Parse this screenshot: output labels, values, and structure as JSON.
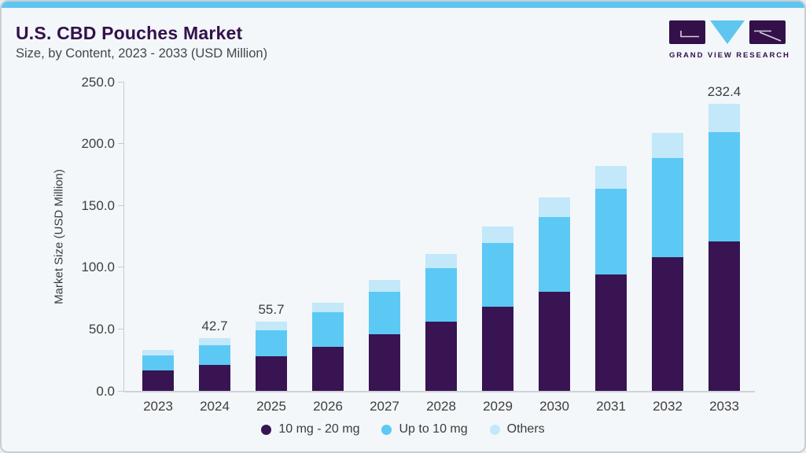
{
  "header": {
    "title": "U.S. CBD Pouches Market",
    "subtitle": "Size, by Content, 2023 - 2033 (USD Million)"
  },
  "logo": {
    "text": "GRAND VIEW RESEARCH"
  },
  "colors": {
    "accent_blue": "#5EC6F0",
    "brand_purple": "#34104A",
    "card_background": "#F3F7FA",
    "card_border": "#C8CED4",
    "axis_line": "#C6CBD1",
    "tick_text": "#3E3E3E",
    "bar_dark_purple": "#381452",
    "bar_mid_blue": "#5BC9F4",
    "bar_pale_blue": "#C2E8F9"
  },
  "chart_data": {
    "type": "bar",
    "stacked": true,
    "title": "U.S. CBD Pouches Market",
    "subtitle": "Size, by Content, 2023 - 2033 (USD Million)",
    "xlabel": "",
    "ylabel": "Market Size (USD Million)",
    "ylim": [
      0,
      250
    ],
    "y_ticks": [
      "0.0",
      "50.0",
      "100.0",
      "150.0",
      "200.0",
      "250.0"
    ],
    "grid": false,
    "legend_position": "bottom",
    "categories": [
      "2023",
      "2024",
      "2025",
      "2026",
      "2027",
      "2028",
      "2029",
      "2030",
      "2031",
      "2032",
      "2033"
    ],
    "series": [
      {
        "name": "10 mg - 20 mg",
        "color": "#381452",
        "values": [
          16.4,
          21.2,
          28.0,
          35.8,
          45.9,
          56.0,
          68.2,
          80.3,
          94.3,
          108.2,
          120.9
        ]
      },
      {
        "name": "Up to 10 mg",
        "color": "#5BC9F4",
        "values": [
          12.5,
          16.0,
          21.3,
          28.1,
          34.4,
          43.0,
          51.5,
          60.3,
          69.2,
          80.1,
          88.6
        ]
      },
      {
        "name": "Others",
        "color": "#C2E8F9",
        "values": [
          3.9,
          5.5,
          6.4,
          7.3,
          9.3,
          11.5,
          13.3,
          15.9,
          18.5,
          20.2,
          22.9
        ]
      }
    ],
    "totals": [
      32.8,
      42.7,
      55.7,
      71.2,
      89.6,
      110.5,
      133.0,
      156.5,
      182.0,
      208.5,
      232.4
    ],
    "total_labels": [
      "",
      "42.7",
      "55.7",
      "",
      "",
      "",
      "",
      "",
      "",
      "",
      "232.4"
    ]
  }
}
